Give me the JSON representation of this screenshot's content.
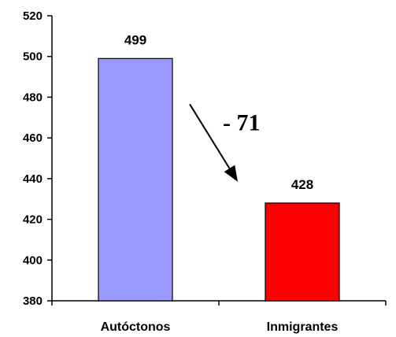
{
  "chart_data": {
    "type": "bar",
    "categories": [
      "Autóctonos",
      "Inmigrantes"
    ],
    "values": [
      499,
      428
    ],
    "data_labels": [
      "499",
      "428"
    ],
    "ylim": [
      380,
      520
    ],
    "yticks": [
      380,
      400,
      420,
      440,
      460,
      480,
      500,
      520
    ],
    "ytick_labels": [
      "380",
      "400",
      "420",
      "440",
      "460",
      "480",
      "500",
      "520"
    ],
    "bar_colors": [
      "#9999ff",
      "#ff0000"
    ],
    "grid": false,
    "legend": "none",
    "annotation": {
      "text": "- 71",
      "arrow_from_category": 0,
      "arrow_to_category": 1
    }
  }
}
